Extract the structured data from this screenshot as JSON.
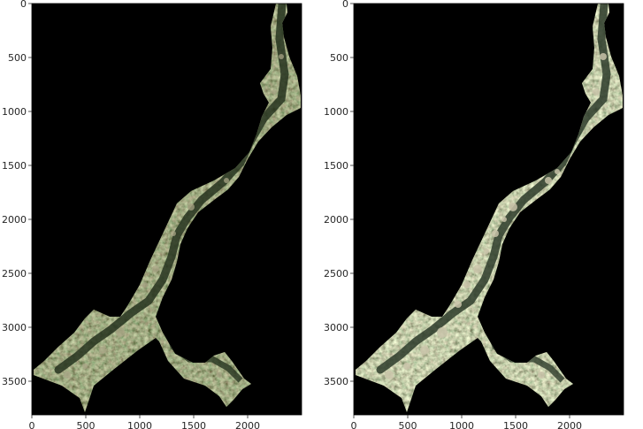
{
  "panels": [
    {
      "id": "left",
      "image_name": "satellite-river-corridor-image",
      "x_ticks": [
        "0",
        "500",
        "1000",
        "1500",
        "2000"
      ],
      "y_ticks": [
        "0",
        "500",
        "1000",
        "1500",
        "2000",
        "2500",
        "3000",
        "3500"
      ]
    },
    {
      "id": "right",
      "image_name": "satellite-river-corridor-image-enhanced",
      "x_ticks": [
        "0",
        "500",
        "1000",
        "1500",
        "2000"
      ],
      "y_ticks": [
        "0",
        "500",
        "1000",
        "1500",
        "2000",
        "2500",
        "3000",
        "3500"
      ]
    }
  ],
  "axis_range": {
    "x": [
      0,
      2500
    ],
    "y": [
      3800,
      0
    ]
  },
  "colors": {
    "background": "#000000",
    "land_left": "#4b5a38",
    "land_right": "#6a7654",
    "river": "#2d3b2a",
    "bright_fields": "#b9b49a"
  }
}
